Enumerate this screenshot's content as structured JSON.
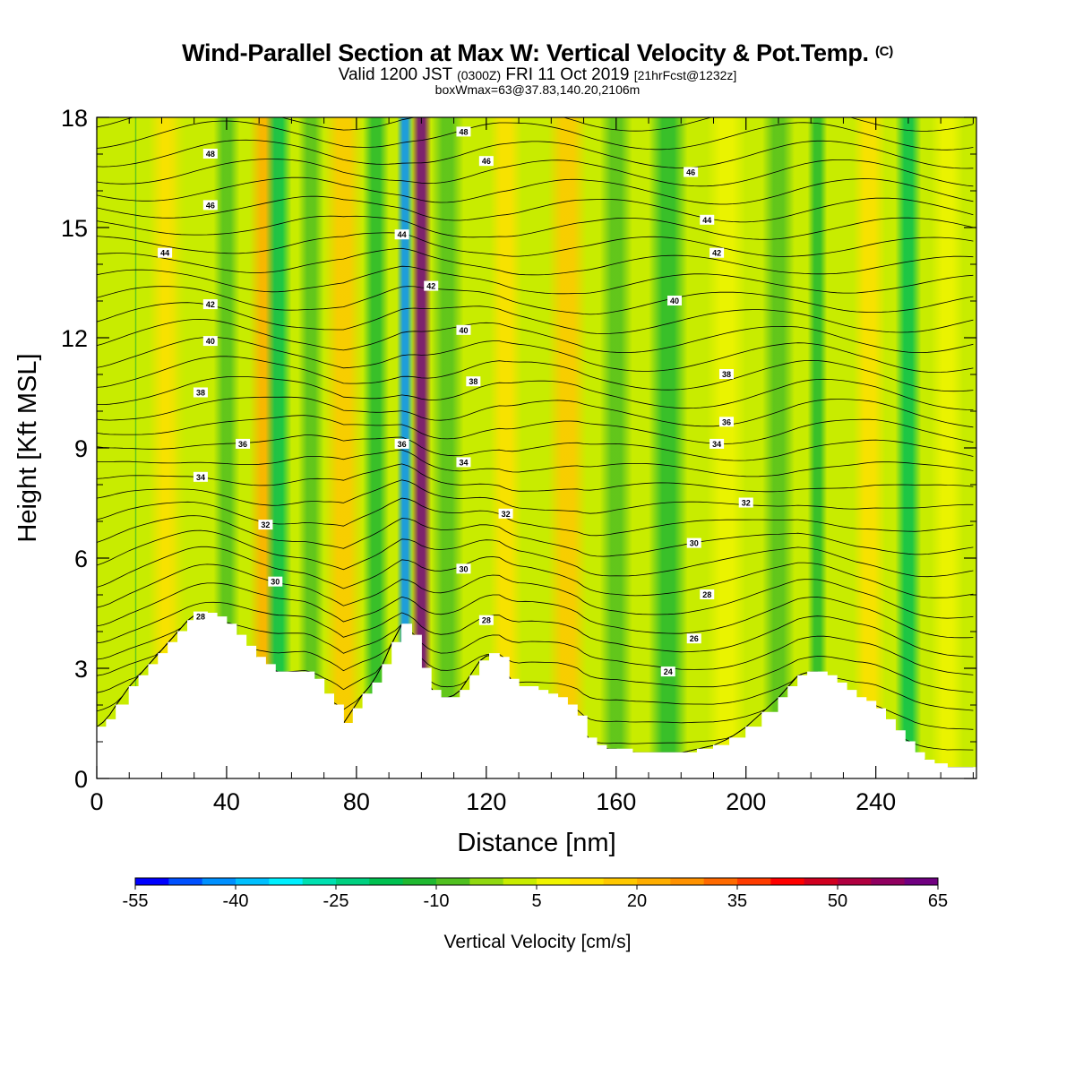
{
  "header": {
    "title": "Wind-Parallel Section at Max W: Vertical Velocity & Pot.Temp.",
    "copyright": "(C)",
    "valid_prefix": "Valid 1200 JST",
    "valid_utc": "(0300Z)",
    "valid_date": "FRI 11 Oct 2019",
    "forecast_info": "[21hrFcst@1232z]",
    "box_info": "boxWmax=63@37.83,140.20,2106m"
  },
  "chart_data": {
    "type": "heatmap",
    "xlabel": "Distance [nm]",
    "ylabel": "Height [Kft MSL]",
    "xlim": [
      0,
      271
    ],
    "ylim": [
      0,
      18
    ],
    "x_ticks": [
      0,
      40,
      80,
      120,
      160,
      200,
      240
    ],
    "y_ticks": [
      0,
      3,
      6,
      9,
      12,
      15,
      18
    ],
    "colorbar": {
      "title": "Vertical Velocity [cm/s]",
      "levels": [
        -55,
        -50,
        -45,
        -40,
        -35,
        -30,
        -25,
        -20,
        -15,
        -10,
        -5,
        0,
        5,
        10,
        15,
        20,
        25,
        30,
        35,
        40,
        45,
        50,
        55,
        60,
        65
      ],
      "labels": [
        "-55",
        "-40",
        "-25",
        "-10",
        "5",
        "20",
        "35",
        "50",
        "65"
      ],
      "colors": [
        "#0000ff",
        "#0050ff",
        "#0090ff",
        "#00c0ff",
        "#00f0ff",
        "#00e0b0",
        "#00d080",
        "#00c050",
        "#20b830",
        "#50c020",
        "#90d810",
        "#c8ec00",
        "#f0f400",
        "#ffe000",
        "#ffc800",
        "#ffae00",
        "#ff9200",
        "#ff6a00",
        "#ff3c00",
        "#ff0000",
        "#d00020",
        "#b00040",
        "#900060",
        "#700080"
      ]
    },
    "velocity_columns": [
      {
        "x": 12,
        "w": 0.3,
        "v": -8
      },
      {
        "x": 22,
        "w": 6,
        "v": 10
      },
      {
        "x": 30,
        "w": 8,
        "v": 4
      },
      {
        "x": 40,
        "w": 4,
        "v": -6
      },
      {
        "x": 52,
        "w": 5,
        "v": 22
      },
      {
        "x": 56,
        "w": 4,
        "v": -20
      },
      {
        "x": 66,
        "w": 4,
        "v": -8
      },
      {
        "x": 76,
        "w": 6,
        "v": 18
      },
      {
        "x": 86,
        "w": 4,
        "v": -12
      },
      {
        "x": 95,
        "w": 2.5,
        "v": -45
      },
      {
        "x": 100,
        "w": 3,
        "v": 60
      },
      {
        "x": 108,
        "w": 5,
        "v": -6
      },
      {
        "x": 126,
        "w": 5,
        "v": 14
      },
      {
        "x": 145,
        "w": 6,
        "v": 18
      },
      {
        "x": 160,
        "w": 5,
        "v": -6
      },
      {
        "x": 176,
        "w": 6,
        "v": -14
      },
      {
        "x": 194,
        "w": 6,
        "v": 6
      },
      {
        "x": 210,
        "w": 5,
        "v": -10
      },
      {
        "x": 222,
        "w": 3,
        "v": -14
      },
      {
        "x": 238,
        "w": 5,
        "v": 10
      },
      {
        "x": 250,
        "w": 4,
        "v": -18
      },
      {
        "x": 262,
        "w": 5,
        "v": 8
      }
    ],
    "theta_levels": [
      24,
      26,
      28,
      30,
      32,
      34,
      36,
      38,
      40,
      42,
      44,
      46,
      48
    ],
    "contour_labels": [
      {
        "x": 32,
        "y": 4.4,
        "text": "28"
      },
      {
        "x": 55,
        "y": 5.35,
        "text": "30"
      },
      {
        "x": 52,
        "y": 6.9,
        "text": "32"
      },
      {
        "x": 32,
        "y": 8.2,
        "text": "34"
      },
      {
        "x": 45,
        "y": 9.1,
        "text": "36"
      },
      {
        "x": 32,
        "y": 10.5,
        "text": "38"
      },
      {
        "x": 35,
        "y": 11.9,
        "text": "40"
      },
      {
        "x": 35,
        "y": 12.9,
        "text": "42"
      },
      {
        "x": 21,
        "y": 14.3,
        "text": "44"
      },
      {
        "x": 35,
        "y": 15.6,
        "text": "46"
      },
      {
        "x": 35,
        "y": 17.0,
        "text": "48"
      },
      {
        "x": 94,
        "y": 9.1,
        "text": "36"
      },
      {
        "x": 94,
        "y": 14.8,
        "text": "44"
      },
      {
        "x": 103,
        "y": 13.4,
        "text": "42"
      },
      {
        "x": 113,
        "y": 17.6,
        "text": "48"
      },
      {
        "x": 120,
        "y": 16.8,
        "text": "46"
      },
      {
        "x": 113,
        "y": 12.2,
        "text": "40"
      },
      {
        "x": 116,
        "y": 10.8,
        "text": "38"
      },
      {
        "x": 113,
        "y": 8.6,
        "text": "34"
      },
      {
        "x": 126,
        "y": 7.2,
        "text": "32"
      },
      {
        "x": 113,
        "y": 5.7,
        "text": "30"
      },
      {
        "x": 120,
        "y": 4.3,
        "text": "28"
      },
      {
        "x": 183,
        "y": 16.5,
        "text": "46"
      },
      {
        "x": 188,
        "y": 15.2,
        "text": "44"
      },
      {
        "x": 191,
        "y": 14.3,
        "text": "42"
      },
      {
        "x": 178,
        "y": 13.0,
        "text": "40"
      },
      {
        "x": 194,
        "y": 11.0,
        "text": "38"
      },
      {
        "x": 194,
        "y": 9.7,
        "text": "36"
      },
      {
        "x": 191,
        "y": 9.1,
        "text": "34"
      },
      {
        "x": 200,
        "y": 7.5,
        "text": "32"
      },
      {
        "x": 184,
        "y": 6.4,
        "text": "30"
      },
      {
        "x": 188,
        "y": 5.0,
        "text": "28"
      },
      {
        "x": 184,
        "y": 3.8,
        "text": "26"
      },
      {
        "x": 176,
        "y": 2.9,
        "text": "24"
      }
    ],
    "terrain": {
      "x": [
        0,
        3,
        6,
        10,
        13,
        16,
        19,
        22,
        25,
        28,
        31,
        34,
        37,
        40,
        43,
        46,
        49,
        52,
        55,
        58,
        61,
        64,
        67,
        70,
        73,
        76,
        79,
        82,
        85,
        88,
        91,
        94,
        97,
        100,
        103,
        106,
        109,
        112,
        115,
        118,
        121,
        124,
        127,
        130,
        133,
        136,
        139,
        142,
        145,
        148,
        151,
        154,
        157,
        160,
        165,
        170,
        175,
        180,
        185,
        190,
        195,
        200,
        205,
        210,
        213,
        216,
        219,
        222,
        225,
        228,
        231,
        234,
        237,
        240,
        243,
        246,
        249,
        252,
        255,
        258,
        262,
        266,
        271
      ],
      "y": [
        1.4,
        1.6,
        2.0,
        2.5,
        2.8,
        3.1,
        3.4,
        3.7,
        4.0,
        4.3,
        4.5,
        4.5,
        4.4,
        4.2,
        3.9,
        3.6,
        3.3,
        3.1,
        2.9,
        2.9,
        2.9,
        2.9,
        2.7,
        2.3,
        2.0,
        1.5,
        1.9,
        2.3,
        2.6,
        3.1,
        3.7,
        4.2,
        3.9,
        3.0,
        2.4,
        2.2,
        2.2,
        2.4,
        2.8,
        3.2,
        3.4,
        3.3,
        2.7,
        2.5,
        2.5,
        2.4,
        2.3,
        2.2,
        2.0,
        1.7,
        1.1,
        0.9,
        0.8,
        0.8,
        0.7,
        0.7,
        0.7,
        0.7,
        0.8,
        0.9,
        1.1,
        1.4,
        1.8,
        2.2,
        2.5,
        2.8,
        2.9,
        2.9,
        2.8,
        2.6,
        2.4,
        2.2,
        2.1,
        1.9,
        1.6,
        1.3,
        1.0,
        0.7,
        0.5,
        0.4,
        0.3,
        0.3,
        0.3
      ]
    }
  }
}
